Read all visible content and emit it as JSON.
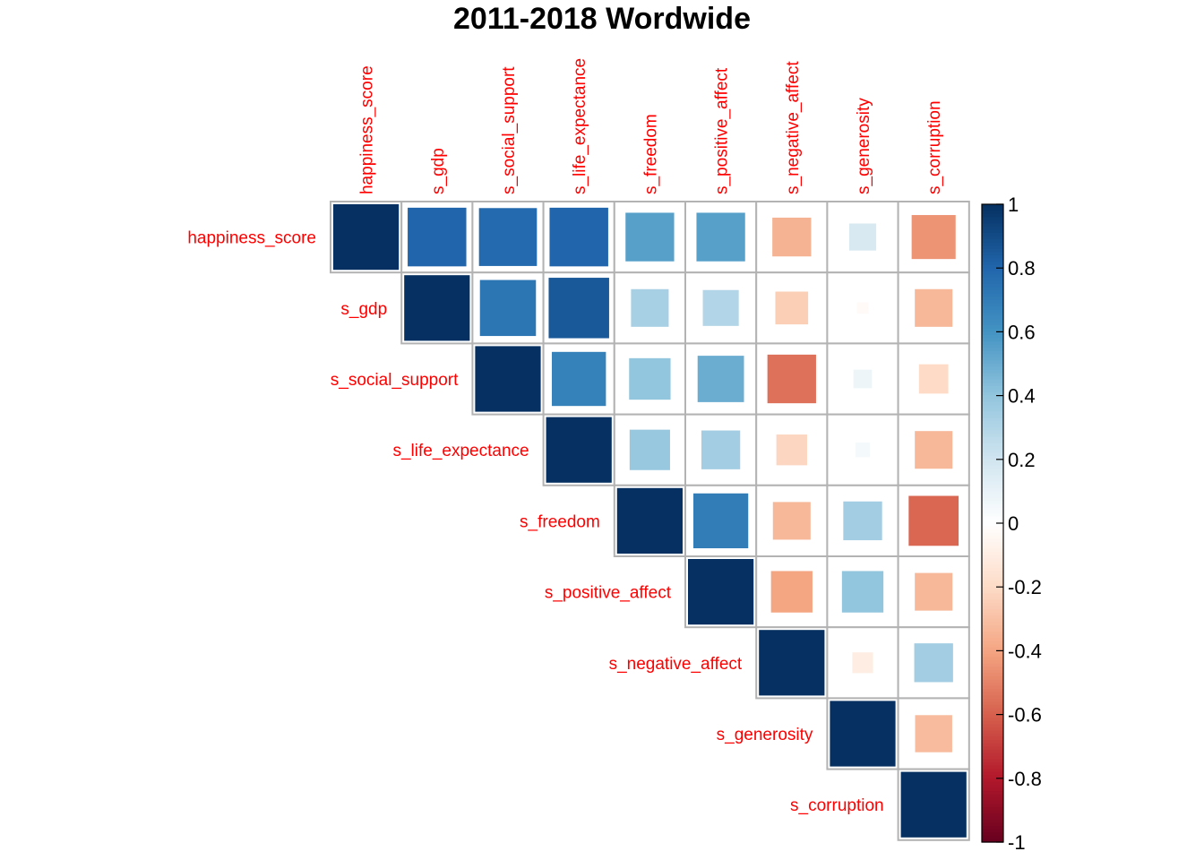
{
  "chart_data": {
    "type": "heatmap",
    "title": "2011-2018 Wordwide",
    "variables": [
      "happiness_score",
      "s_gdp",
      "s_social_support",
      "s_life_expectance",
      "s_freedom",
      "s_positive_affect",
      "s_negative_affect",
      "s_generosity",
      "s_corruption"
    ],
    "matrix_shape": "upper-triangle",
    "cell_glyph": "square sized by |correlation|",
    "correlations": [
      [
        1.0,
        0.8,
        0.78,
        0.8,
        0.55,
        0.55,
        -0.35,
        0.17,
        -0.45
      ],
      [
        null,
        1.0,
        0.73,
        0.85,
        0.33,
        0.3,
        -0.25,
        -0.03,
        -0.33
      ],
      [
        null,
        null,
        1.0,
        0.68,
        0.4,
        0.5,
        -0.55,
        0.08,
        -0.2
      ],
      [
        null,
        null,
        null,
        1.0,
        0.38,
        0.35,
        -0.22,
        0.05,
        -0.33
      ],
      [
        null,
        null,
        null,
        null,
        1.0,
        0.7,
        -0.33,
        0.35,
        -0.58
      ],
      [
        null,
        null,
        null,
        null,
        null,
        1.0,
        -0.4,
        0.4,
        -0.33
      ],
      [
        null,
        null,
        null,
        null,
        null,
        null,
        1.0,
        -0.1,
        0.35
      ],
      [
        null,
        null,
        null,
        null,
        null,
        null,
        null,
        1.0,
        -0.32
      ],
      [
        null,
        null,
        null,
        null,
        null,
        null,
        null,
        null,
        1.0
      ]
    ],
    "colorbar": {
      "ticks": [
        1,
        0.8,
        0.6,
        0.4,
        0.2,
        0,
        -0.2,
        -0.4,
        -0.6,
        -0.8,
        -1
      ],
      "tick_labels": [
        "1",
        "0.8",
        "0.6",
        "0.4",
        "0.2",
        "0",
        "-0.2",
        "-0.4",
        "-0.6",
        "-0.8",
        "-1"
      ],
      "range": [
        -1,
        1
      ],
      "palette": [
        "#67001F",
        "#B2182B",
        "#D6604D",
        "#F4A582",
        "#FDDBC7",
        "#FFFFFF",
        "#D1E5F0",
        "#92C5DE",
        "#4393C3",
        "#2166AC",
        "#053061"
      ],
      "placement": "right"
    },
    "label_color": "#ff0000",
    "grid_color": "#b3b3b3"
  }
}
